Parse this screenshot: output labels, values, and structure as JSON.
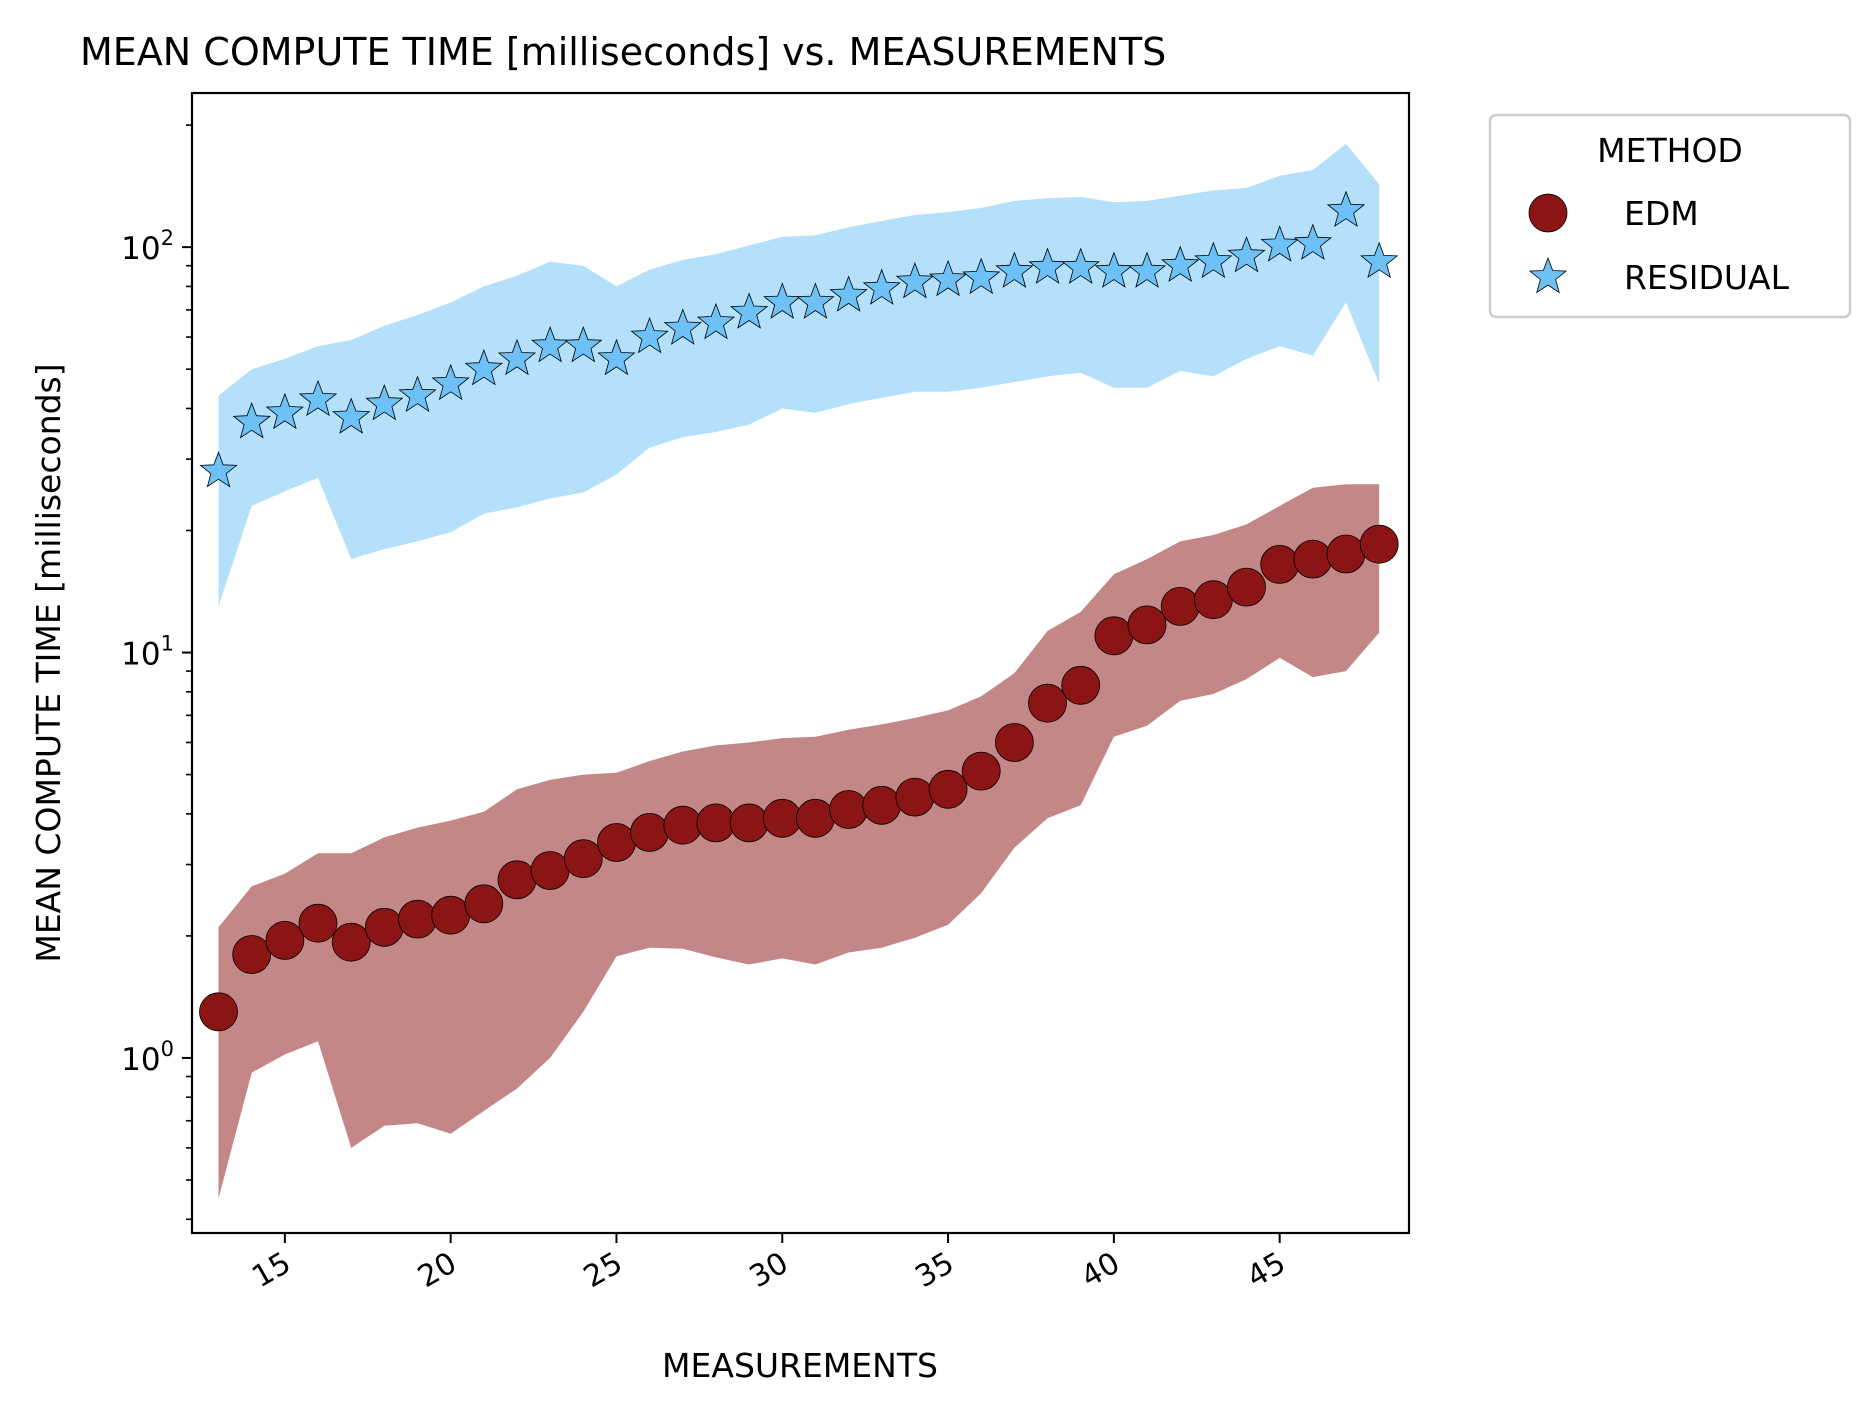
{
  "chart_data": {
    "type": "scatter",
    "title": "MEAN COMPUTE TIME [milliseconds] vs. MEASUREMENTS",
    "xlabel": "MEASUREMENTS",
    "ylabel": "MEAN COMPUTE TIME [milliseconds]",
    "xlim": [
      12.2,
      48.9
    ],
    "ylim": [
      0.37,
      240
    ],
    "yscale": "log",
    "grid": false,
    "xticks": [
      15,
      20,
      25,
      30,
      35,
      40,
      45
    ],
    "xtick_labels": [
      "15",
      "20",
      "25",
      "30",
      "35",
      "40",
      "45"
    ],
    "yticks": [
      1,
      10,
      100
    ],
    "ytick_labels": [
      {
        "base": "10",
        "exp": "0"
      },
      {
        "base": "10",
        "exp": "1"
      },
      {
        "base": "10",
        "exp": "2"
      }
    ],
    "legend": {
      "title": "METHOD",
      "position": "outside-top-right",
      "entries": [
        {
          "label": "EDM",
          "marker": "circle",
          "color": "#8b1515"
        },
        {
          "label": "RESIDUAL",
          "marker": "star",
          "color": "#6ec1f7"
        }
      ]
    },
    "x": [
      13,
      14,
      15,
      16,
      17,
      18,
      19,
      20,
      21,
      22,
      23,
      24,
      25,
      26,
      27,
      28,
      29,
      30,
      31,
      32,
      33,
      34,
      35,
      36,
      37,
      38,
      39,
      40,
      41,
      42,
      43,
      44,
      45,
      46,
      47,
      48
    ],
    "series": [
      {
        "name": "EDM",
        "marker": "circle",
        "color": "#8b1515",
        "band_color": "#c48787",
        "values": [
          1.3,
          1.8,
          1.95,
          2.15,
          1.93,
          2.1,
          2.2,
          2.25,
          2.4,
          2.75,
          2.9,
          3.1,
          3.4,
          3.6,
          3.75,
          3.8,
          3.8,
          3.9,
          3.9,
          4.1,
          4.2,
          4.4,
          4.6,
          5.1,
          6.0,
          7.5,
          8.3,
          11.0,
          11.7,
          13.0,
          13.5,
          14.5,
          16.5,
          17.0,
          17.5,
          18.5
        ],
        "lower": [
          0.45,
          0.92,
          1.02,
          1.1,
          0.6,
          0.68,
          0.69,
          0.65,
          0.74,
          0.84,
          1.0,
          1.3,
          1.78,
          1.87,
          1.86,
          1.77,
          1.7,
          1.76,
          1.7,
          1.82,
          1.87,
          1.98,
          2.13,
          2.55,
          3.3,
          3.9,
          4.2,
          6.2,
          6.6,
          7.6,
          7.9,
          8.6,
          9.7,
          8.7,
          9.0,
          11.2
        ],
        "upper": [
          2.1,
          2.65,
          2.85,
          3.2,
          3.2,
          3.5,
          3.7,
          3.85,
          4.05,
          4.6,
          4.85,
          5.0,
          5.05,
          5.4,
          5.7,
          5.9,
          6.0,
          6.15,
          6.2,
          6.45,
          6.65,
          6.9,
          7.2,
          7.8,
          8.9,
          11.3,
          12.6,
          15.6,
          17.0,
          18.8,
          19.5,
          20.7,
          23.0,
          25.5,
          26.0,
          26.0
        ]
      },
      {
        "name": "RESIDUAL",
        "marker": "star",
        "color": "#6ec1f7",
        "band_color": "#b5e0fb",
        "values": [
          28,
          37,
          39,
          42,
          38,
          41,
          43,
          46,
          50,
          53,
          57,
          57,
          53,
          60,
          63,
          65,
          69,
          73,
          73,
          76,
          79,
          82,
          83,
          84,
          87,
          89,
          89,
          87,
          87,
          90,
          92,
          95,
          101,
          102,
          123,
          92
        ],
        "lower": [
          13,
          23,
          25,
          27,
          17,
          18,
          18.8,
          19.8,
          22,
          22.8,
          24,
          24.8,
          27.5,
          32,
          34,
          35,
          36.5,
          40,
          39,
          41,
          42.5,
          44,
          44,
          45,
          46.5,
          48,
          49,
          45,
          45,
          49.5,
          48,
          53,
          57,
          54,
          73,
          46
        ],
        "upper": [
          43,
          50,
          53,
          57,
          59,
          64,
          68,
          73,
          80,
          85,
          92,
          90,
          80,
          88,
          93,
          96,
          101,
          106,
          107,
          112,
          116,
          120,
          122,
          125,
          130,
          132,
          133,
          129,
          130,
          134,
          138,
          140,
          150,
          155,
          180,
          143
        ]
      }
    ]
  }
}
